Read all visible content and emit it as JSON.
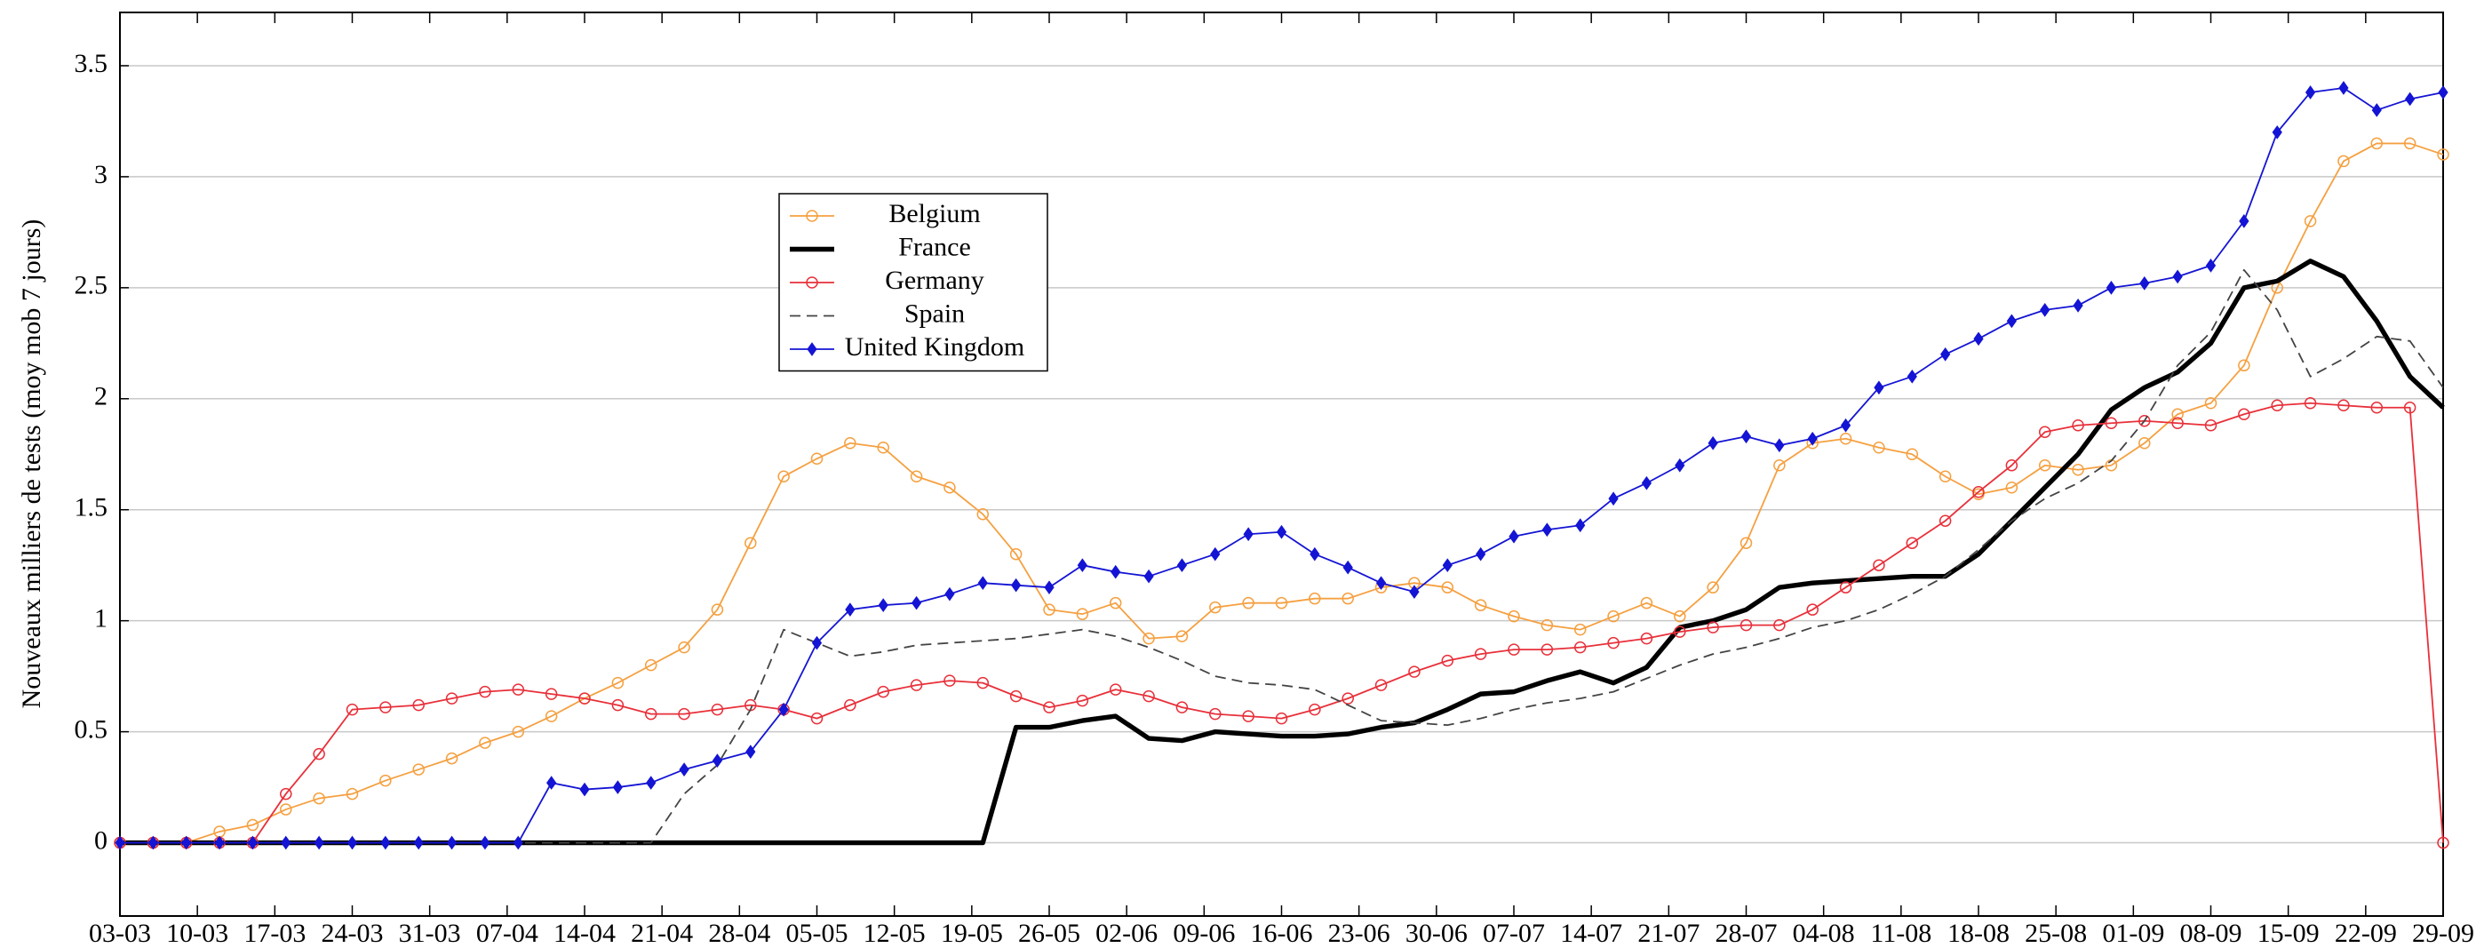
{
  "chart_data": {
    "type": "line",
    "y_label": "Nouveaux milliers de tests (moy mob 7 jours)",
    "x": [
      0,
      3,
      6,
      9,
      12,
      15,
      18,
      21,
      24,
      27,
      30,
      33,
      36,
      39,
      42,
      45,
      48,
      51,
      54,
      57,
      60,
      63,
      66,
      69,
      72,
      75,
      78,
      81,
      84,
      87,
      90,
      93,
      96,
      99,
      102,
      105,
      108,
      111,
      114,
      117,
      120,
      123,
      126,
      129,
      132,
      135,
      138,
      141,
      144,
      147,
      150,
      153,
      156,
      159,
      162,
      165,
      168,
      171,
      174,
      177,
      180,
      183,
      186,
      189,
      192,
      195,
      198,
      201,
      204,
      207,
      210
    ],
    "xlim": [
      0,
      210
    ],
    "xticks": [
      {
        "value": 0,
        "label": "03-03"
      },
      {
        "value": 7,
        "label": "10-03"
      },
      {
        "value": 14,
        "label": "17-03"
      },
      {
        "value": 21,
        "label": "24-03"
      },
      {
        "value": 28,
        "label": "31-03"
      },
      {
        "value": 35,
        "label": "07-04"
      },
      {
        "value": 42,
        "label": "14-04"
      },
      {
        "value": 49,
        "label": "21-04"
      },
      {
        "value": 56,
        "label": "28-04"
      },
      {
        "value": 63,
        "label": "05-05"
      },
      {
        "value": 70,
        "label": "12-05"
      },
      {
        "value": 77,
        "label": "19-05"
      },
      {
        "value": 84,
        "label": "26-05"
      },
      {
        "value": 91,
        "label": "02-06"
      },
      {
        "value": 98,
        "label": "09-06"
      },
      {
        "value": 105,
        "label": "16-06"
      },
      {
        "value": 112,
        "label": "23-06"
      },
      {
        "value": 119,
        "label": "30-06"
      },
      {
        "value": 126,
        "label": "07-07"
      },
      {
        "value": 133,
        "label": "14-07"
      },
      {
        "value": 140,
        "label": "21-07"
      },
      {
        "value": 147,
        "label": "28-07"
      },
      {
        "value": 154,
        "label": "04-08"
      },
      {
        "value": 161,
        "label": "11-08"
      },
      {
        "value": 168,
        "label": "18-08"
      },
      {
        "value": 175,
        "label": "25-08"
      },
      {
        "value": 182,
        "label": "01-09"
      },
      {
        "value": 189,
        "label": "08-09"
      },
      {
        "value": 196,
        "label": "15-09"
      },
      {
        "value": 203,
        "label": "22-09"
      },
      {
        "value": 210,
        "label": "29-09"
      }
    ],
    "ylim": [
      -0.33,
      3.74
    ],
    "yticks": [
      0,
      0.5,
      1,
      1.5,
      2,
      2.5,
      3,
      3.5
    ],
    "grid": true,
    "series": [
      {
        "name": "Belgium",
        "color": "#f5a040",
        "marker": "circle",
        "line_style": "solid",
        "line_width": 1,
        "values": [
          0,
          0,
          0,
          0.05,
          0.08,
          0.15,
          0.2,
          0.22,
          0.28,
          0.33,
          0.38,
          0.45,
          0.5,
          0.57,
          0.65,
          0.72,
          0.8,
          0.88,
          1.05,
          1.35,
          1.65,
          1.73,
          1.8,
          1.78,
          1.65,
          1.6,
          1.48,
          1.3,
          1.05,
          1.03,
          1.08,
          0.92,
          0.93,
          1.06,
          1.08,
          1.08,
          1.1,
          1.1,
          1.15,
          1.17,
          1.15,
          1.07,
          1.02,
          0.98,
          0.96,
          1.02,
          1.08,
          1.02,
          1.15,
          1.35,
          1.7,
          1.8,
          1.82,
          1.78,
          1.75,
          1.65,
          1.57,
          1.6,
          1.7,
          1.68,
          1.7,
          1.8,
          1.93,
          1.98,
          2.15,
          2.5,
          2.8,
          3.07,
          3.15,
          3.15,
          3.1
        ]
      },
      {
        "name": "France",
        "color": "#000000",
        "marker": null,
        "line_style": "solid",
        "line_width": 3,
        "values": [
          0,
          0,
          0,
          0,
          0,
          0,
          0,
          0,
          0,
          0,
          0,
          0,
          0,
          0,
          0,
          0,
          0,
          0,
          0,
          0,
          0,
          0,
          0,
          0,
          0,
          0,
          0,
          0.52,
          0.52,
          0.55,
          0.57,
          0.47,
          0.46,
          0.5,
          0.49,
          0.48,
          0.48,
          0.49,
          0.52,
          0.54,
          0.6,
          0.67,
          0.68,
          0.73,
          0.77,
          0.72,
          0.79,
          0.97,
          1.0,
          1.05,
          1.15,
          1.17,
          1.18,
          1.19,
          1.2,
          1.2,
          1.3,
          1.45,
          1.6,
          1.75,
          1.95,
          2.05,
          2.12,
          2.25,
          2.5,
          2.53,
          2.62,
          2.55,
          2.35,
          2.1,
          1.96
        ]
      },
      {
        "name": "Germany",
        "color": "#e8303a",
        "marker": "circle",
        "line_style": "solid",
        "line_width": 1,
        "values": [
          0,
          0,
          0,
          0,
          0,
          0.22,
          0.4,
          0.6,
          0.61,
          0.62,
          0.65,
          0.68,
          0.69,
          0.67,
          0.65,
          0.62,
          0.58,
          0.58,
          0.6,
          0.62,
          0.6,
          0.56,
          0.62,
          0.68,
          0.71,
          0.73,
          0.72,
          0.66,
          0.61,
          0.64,
          0.69,
          0.66,
          0.61,
          0.58,
          0.57,
          0.56,
          0.6,
          0.65,
          0.71,
          0.77,
          0.82,
          0.85,
          0.87,
          0.87,
          0.88,
          0.9,
          0.92,
          0.95,
          0.97,
          0.98,
          0.98,
          1.05,
          1.15,
          1.25,
          1.35,
          1.45,
          1.58,
          1.7,
          1.85,
          1.88,
          1.89,
          1.9,
          1.89,
          1.88,
          1.93,
          1.97,
          1.98,
          1.97,
          1.96,
          1.96,
          0
        ]
      },
      {
        "name": "Spain",
        "color": "#444444",
        "marker": null,
        "line_style": "dashed",
        "line_width": 1,
        "values": [
          0,
          0,
          0,
          0,
          0,
          0,
          0,
          0,
          0,
          0,
          0,
          0,
          0,
          0,
          0,
          0,
          0,
          0.22,
          0.35,
          0.6,
          0.96,
          0.9,
          0.84,
          0.86,
          0.89,
          0.9,
          0.91,
          0.92,
          0.94,
          0.96,
          0.93,
          0.88,
          0.82,
          0.75,
          0.72,
          0.71,
          0.69,
          0.62,
          0.55,
          0.54,
          0.53,
          0.56,
          0.6,
          0.63,
          0.65,
          0.68,
          0.74,
          0.8,
          0.85,
          0.88,
          0.92,
          0.97,
          1.0,
          1.05,
          1.12,
          1.2,
          1.32,
          1.45,
          1.55,
          1.62,
          1.72,
          1.9,
          2.15,
          2.3,
          2.58,
          2.4,
          2.1,
          2.18,
          2.28,
          2.26,
          2.05
        ]
      },
      {
        "name": "United Kingdom",
        "color": "#1414d4",
        "marker": "diamond",
        "line_style": "solid",
        "line_width": 1,
        "values": [
          0,
          0,
          0,
          0,
          0,
          0,
          0,
          0,
          0,
          0,
          0,
          0,
          0,
          0.27,
          0.24,
          0.25,
          0.27,
          0.33,
          0.37,
          0.41,
          0.6,
          0.9,
          1.05,
          1.07,
          1.08,
          1.12,
          1.17,
          1.16,
          1.15,
          1.25,
          1.22,
          1.2,
          1.25,
          1.3,
          1.39,
          1.4,
          1.3,
          1.24,
          1.17,
          1.13,
          1.25,
          1.3,
          1.38,
          1.41,
          1.43,
          1.55,
          1.62,
          1.7,
          1.8,
          1.83,
          1.79,
          1.82,
          1.88,
          2.05,
          2.1,
          2.2,
          2.27,
          2.35,
          2.4,
          2.42,
          2.5,
          2.52,
          2.55,
          2.6,
          2.8,
          3.2,
          3.38,
          3.4,
          3.3,
          3.35,
          3.38
        ]
      }
    ]
  }
}
